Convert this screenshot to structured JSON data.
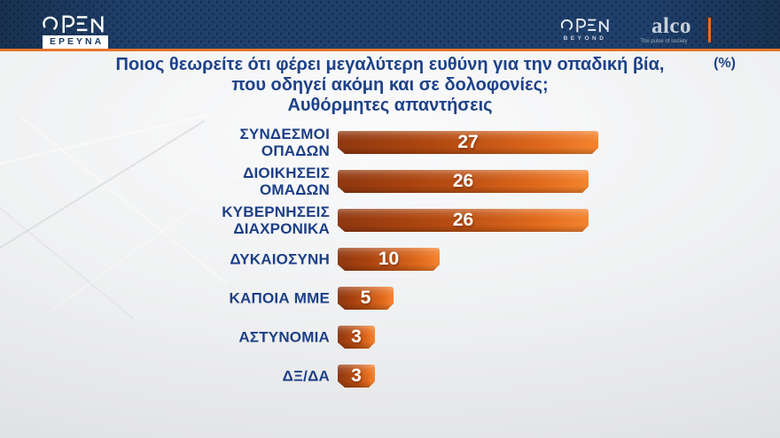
{
  "header": {
    "open_wordmark": "OPEN",
    "ereyna_label": "ΕΡΕΥΝΑ",
    "open_beyond_wordmark": "OPEN",
    "beyond_label": "BEYOND",
    "alco_wordmark": "alco",
    "alco_tagline": "The pulse of society"
  },
  "title": {
    "line1": "Ποιος θεωρείτε ότι φέρει μεγαλύτερη ευθύνη για την οπαδική βία,",
    "line2": "που οδηγεί ακόμη και σε δολοφονίες;",
    "line3": "Αυθόρμητες απαντήσεις",
    "unit_label": "(%)"
  },
  "chart_data": {
    "type": "bar",
    "orientation": "horizontal",
    "title": "Ποιος θεωρείτε ότι φέρει μεγαλύτερη ευθύνη για την οπαδική βία, που οδηγεί ακόμη και σε δολοφονίες; Αυθόρμητες απαντήσεις",
    "unit": "%",
    "categories": [
      "ΣΥΝΔΕΣΜΟΙ ΟΠΑΔΩΝ",
      "ΔΙΟΙΚΗΣΕΙΣ ΟΜΑΔΩΝ",
      "ΚΥΒΕΡΝΗΣΕΙΣ ΔΙΑΧΡΟΝΙΚΑ",
      "ΔΥΚΑΙΟΣΥΝΗ",
      "ΚΑΠΟΙΑ ΜΜΕ",
      "ΑΣΤΥΝΟΜΙΑ",
      "ΔΞ/ΔΑ"
    ],
    "labels_lines": [
      [
        "ΣΥΝΔΕΣΜΟΙ",
        "ΟΠΑΔΩΝ"
      ],
      [
        "ΔΙΟΙΚΗΣΕΙΣ",
        "ΟΜΑΔΩΝ"
      ],
      [
        "ΚΥΒΕΡΝΗΣΕΙΣ",
        "ΔΙΑΧΡΟΝΙΚΑ"
      ],
      [
        "ΔΥΚΑΙΟΣΥΝΗ"
      ],
      [
        "ΚΑΠΟΙΑ ΜΜΕ"
      ],
      [
        "ΑΣΤΥΝΟΜΙΑ"
      ],
      [
        "ΔΞ/ΔΑ"
      ]
    ],
    "values": [
      27,
      26,
      26,
      10,
      5,
      3,
      3
    ],
    "xlim": [
      0,
      30
    ],
    "value_labels_position": "inside-center",
    "grid": false,
    "legend": false
  },
  "colors": {
    "header_navy": "#1f406c",
    "accent_orange": "#e8742b",
    "title_blue": "#1d4289",
    "label_blue": "#1c3f86",
    "bar_dark": "#8e3710",
    "bar_bright": "#f4842f",
    "value_text": "#ffffff",
    "background_light": "#f0f1f2"
  }
}
